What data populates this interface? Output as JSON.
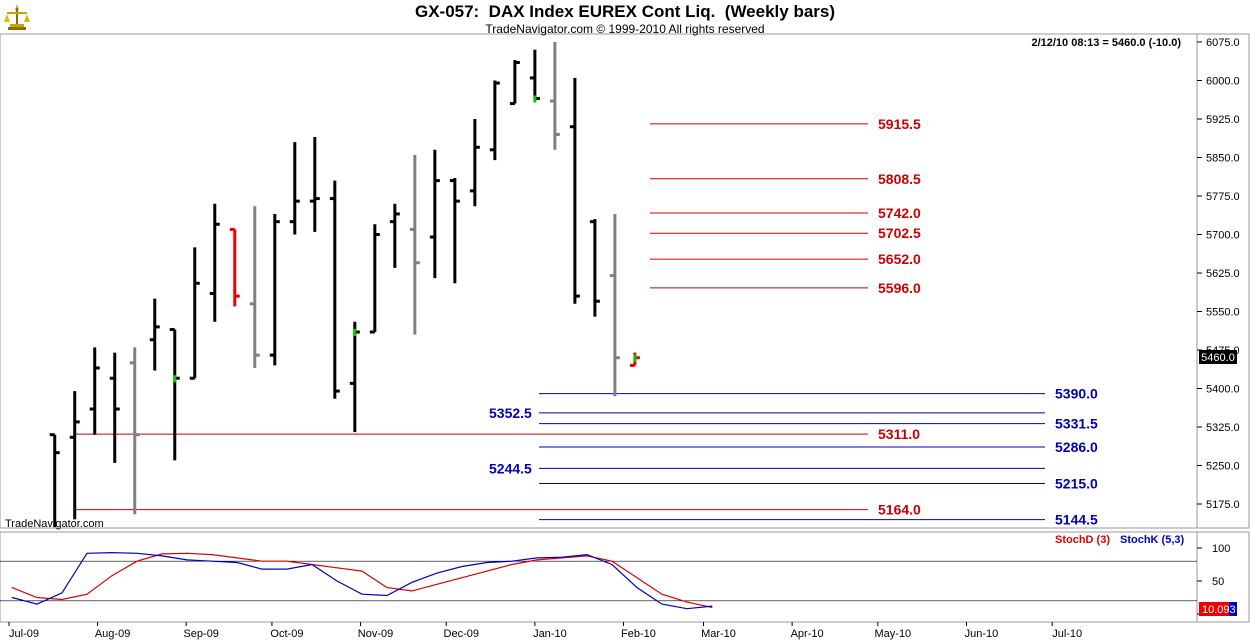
{
  "header": {
    "title": "GX-057:  DAX Index EUREX Cont Liq.  (Weekly bars)",
    "subtitle": "TradeNavigator.com © 1999-2010 All rights reserved",
    "status": "2/12/10 08:13 = 5460.0 (-10.0)",
    "watermark": "TradeNavigator.com"
  },
  "colors": {
    "up_bar": "#000000",
    "down_bar": "#808080",
    "highlight_bar": "#ee0000",
    "green_tick": "#00cc00",
    "red_level": "#cc0000",
    "blue_level": "#0000bb",
    "stoch_d": "#dd0000",
    "stoch_k": "#0000cc"
  },
  "chart_data": [
    {
      "type": "ohlc",
      "title": "GX-057:  DAX Index EUREX Cont Liq.  (Weekly bars)",
      "y_ticks": [
        "6075.0",
        "6000.0",
        "5925.0",
        "5850.0",
        "5775.0",
        "5700.0",
        "5625.0",
        "5550.0",
        "5475.0",
        "5400.0",
        "5325.0",
        "5250.0",
        "5175.0"
      ],
      "ylim": [
        5125,
        6080
      ],
      "last_price": "5460.0",
      "x_ticks": [
        "Jul-09",
        "Aug-09",
        "Sep-09",
        "Oct-09",
        "Nov-09",
        "Dec-09",
        "Jan-10",
        "Feb-10",
        "Mar-10",
        "Apr-10",
        "May-10",
        "Jun-10",
        "Jul-10"
      ],
      "bars": [
        {
          "date": "2009-07-17",
          "open": 5310,
          "high": 5305,
          "low": 5130,
          "close": 5275,
          "color": "up"
        },
        {
          "date": "2009-07-24",
          "open": 5305,
          "high": 5395,
          "low": 5145,
          "close": 5335,
          "color": "up"
        },
        {
          "date": "2009-07-31",
          "open": 5360,
          "high": 5480,
          "low": 5310,
          "close": 5440,
          "color": "up"
        },
        {
          "date": "2009-08-07",
          "open": 5420,
          "high": 5470,
          "low": 5255,
          "close": 5360,
          "color": "up"
        },
        {
          "date": "2009-08-14",
          "open": 5450,
          "high": 5480,
          "low": 5155,
          "close": 5310,
          "color": "down"
        },
        {
          "date": "2009-08-21",
          "open": 5495,
          "high": 5575,
          "low": 5435,
          "close": 5520,
          "color": "up"
        },
        {
          "date": "2009-08-28",
          "open": 5515,
          "high": 5515,
          "low": 5260,
          "close": 5420,
          "color": "up",
          "green": true
        },
        {
          "date": "2009-09-04",
          "open": 5420,
          "high": 5675,
          "low": 5420,
          "close": 5605,
          "color": "up"
        },
        {
          "date": "2009-09-11",
          "open": 5585,
          "high": 5760,
          "low": 5530,
          "close": 5720,
          "color": "up"
        },
        {
          "date": "2009-09-18",
          "open": 5710,
          "high": 5710,
          "low": 5560,
          "close": 5580,
          "color": "red"
        },
        {
          "date": "2009-09-25",
          "open": 5565,
          "high": 5755,
          "low": 5440,
          "close": 5465,
          "color": "down"
        },
        {
          "date": "2009-10-02",
          "open": 5465,
          "high": 5740,
          "low": 5445,
          "close": 5725,
          "color": "up"
        },
        {
          "date": "2009-10-09",
          "open": 5725,
          "high": 5880,
          "low": 5700,
          "close": 5765,
          "color": "up"
        },
        {
          "date": "2009-10-16",
          "open": 5765,
          "high": 5890,
          "low": 5705,
          "close": 5770,
          "color": "up"
        },
        {
          "date": "2009-10-23",
          "open": 5770,
          "high": 5805,
          "low": 5380,
          "close": 5395,
          "color": "up"
        },
        {
          "date": "2009-10-30",
          "open": 5410,
          "high": 5530,
          "low": 5315,
          "close": 5510,
          "color": "up",
          "green": true
        },
        {
          "date": "2009-11-06",
          "open": 5510,
          "high": 5720,
          "low": 5510,
          "close": 5700,
          "color": "up"
        },
        {
          "date": "2009-11-13",
          "open": 5725,
          "high": 5760,
          "low": 5635,
          "close": 5740,
          "color": "up"
        },
        {
          "date": "2009-11-20",
          "open": 5710,
          "high": 5855,
          "low": 5505,
          "close": 5645,
          "color": "down"
        },
        {
          "date": "2009-11-27",
          "open": 5695,
          "high": 5865,
          "low": 5615,
          "close": 5805,
          "color": "up"
        },
        {
          "date": "2009-12-04",
          "open": 5805,
          "high": 5810,
          "low": 5605,
          "close": 5765,
          "color": "up"
        },
        {
          "date": "2009-12-11",
          "open": 5785,
          "high": 5925,
          "low": 5755,
          "close": 5870,
          "color": "up"
        },
        {
          "date": "2009-12-18",
          "open": 5865,
          "high": 6000,
          "low": 5845,
          "close": 5995,
          "color": "up"
        },
        {
          "date": "2009-12-25",
          "open": 5955,
          "high": 6040,
          "low": 5955,
          "close": 6035,
          "color": "up"
        },
        {
          "date": "2010-01-01",
          "open": 6005,
          "high": 6060,
          "low": 5965,
          "close": 5965,
          "color": "up",
          "green": true
        },
        {
          "date": "2010-01-08",
          "open": 5960,
          "high": 6075,
          "low": 5865,
          "close": 5895,
          "color": "down"
        },
        {
          "date": "2010-01-15",
          "open": 5910,
          "high": 6005,
          "low": 5565,
          "close": 5580,
          "color": "up"
        },
        {
          "date": "2010-01-22",
          "open": 5725,
          "high": 5730,
          "low": 5540,
          "close": 5570,
          "color": "up"
        },
        {
          "date": "2010-01-29",
          "open": 5620,
          "high": 5740,
          "low": 5385,
          "close": 5460,
          "color": "down"
        },
        {
          "date": "2010-02-05",
          "open": 5445,
          "high": 5470,
          "low": 5445,
          "close": 5460,
          "color": "red",
          "green": true
        }
      ],
      "levels": [
        {
          "value": "5915.5",
          "color": "red"
        },
        {
          "value": "5808.5",
          "color": "red"
        },
        {
          "value": "5742.0",
          "color": "red"
        },
        {
          "value": "5702.5",
          "color": "red"
        },
        {
          "value": "5652.0",
          "color": "red"
        },
        {
          "value": "5596.0",
          "color": "red"
        },
        {
          "value": "5390.0",
          "color": "blue",
          "label_side": "right"
        },
        {
          "value": "5352.5",
          "color": "blue",
          "label_side": "left"
        },
        {
          "value": "5331.5",
          "color": "blue",
          "label_side": "right"
        },
        {
          "value": "5311.0",
          "color": "red"
        },
        {
          "value": "5286.0",
          "color": "blue",
          "label_side": "right"
        },
        {
          "value": "5244.5",
          "color": "blue",
          "label_side": "left"
        },
        {
          "value": "5215.0",
          "color": "blue",
          "label_side": "right"
        },
        {
          "value": "5164.0",
          "color": "red"
        },
        {
          "value": "5144.5",
          "color": "blue",
          "label_side": "right"
        }
      ]
    },
    {
      "type": "line",
      "y_ticks": [
        "100",
        "50",
        "0"
      ],
      "ylim": [
        0,
        100
      ],
      "last_value": "10.093",
      "series": [
        {
          "name": "StochD (3)",
          "color": "red",
          "values": [
            40,
            25,
            22,
            30,
            58,
            80,
            91,
            92,
            90,
            85,
            80,
            80,
            75,
            70,
            65,
            40,
            35,
            45,
            55,
            65,
            75,
            82,
            85,
            88,
            80,
            55,
            30,
            18,
            10
          ]
        },
        {
          "name": "StochK (5,3)",
          "color": "blue",
          "values": [
            25,
            15,
            32,
            92,
            93,
            92,
            88,
            82,
            80,
            78,
            68,
            68,
            75,
            50,
            30,
            28,
            48,
            62,
            72,
            78,
            80,
            85,
            86,
            90,
            75,
            40,
            15,
            8,
            12
          ]
        }
      ]
    }
  ]
}
